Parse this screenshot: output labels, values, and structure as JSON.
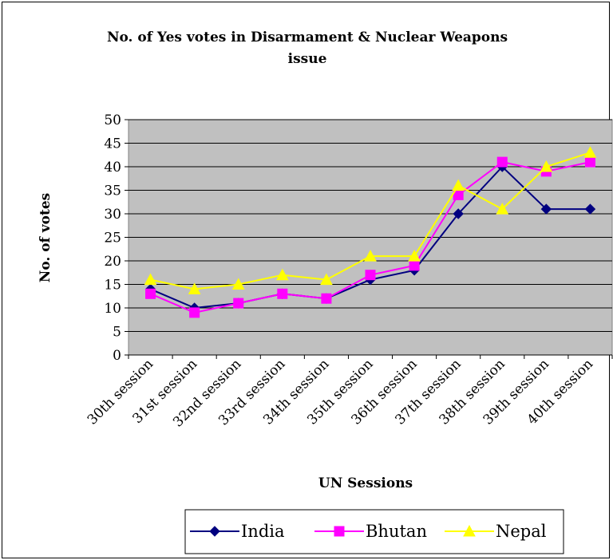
{
  "chart_data": {
    "type": "line",
    "title": "No. of Yes votes in Disarmament & Nuclear Weapons issue",
    "title_line1": "No. of Yes votes in Disarmament & Nuclear Weapons",
    "title_line2": "issue",
    "xlabel": "UN Sessions",
    "ylabel": "No. of votes",
    "ylim": [
      0,
      50
    ],
    "yticks": [
      0,
      5,
      10,
      15,
      20,
      25,
      30,
      35,
      40,
      45,
      50
    ],
    "categories": [
      "30th session",
      "31st session",
      "32nd session",
      "33rd session",
      "34th session",
      "35th session",
      "36th session",
      "37th session",
      "38th session",
      "39th session",
      "40th session"
    ],
    "grid": true,
    "plot_background": "#c0c0c0",
    "legend_position": "bottom",
    "series": [
      {
        "name": "India",
        "color": "#000080",
        "marker": "diamond",
        "values": [
          14,
          10,
          11,
          13,
          12,
          16,
          18,
          30,
          40,
          31,
          31
        ]
      },
      {
        "name": "Bhutan",
        "color": "#ff00ff",
        "marker": "square",
        "values": [
          13,
          9,
          11,
          13,
          12,
          17,
          19,
          34,
          41,
          39,
          41
        ]
      },
      {
        "name": "Nepal",
        "color": "#ffff00",
        "marker": "triangle",
        "values": [
          16,
          14,
          15,
          17,
          16,
          21,
          21,
          36,
          31,
          40,
          43
        ]
      }
    ]
  }
}
